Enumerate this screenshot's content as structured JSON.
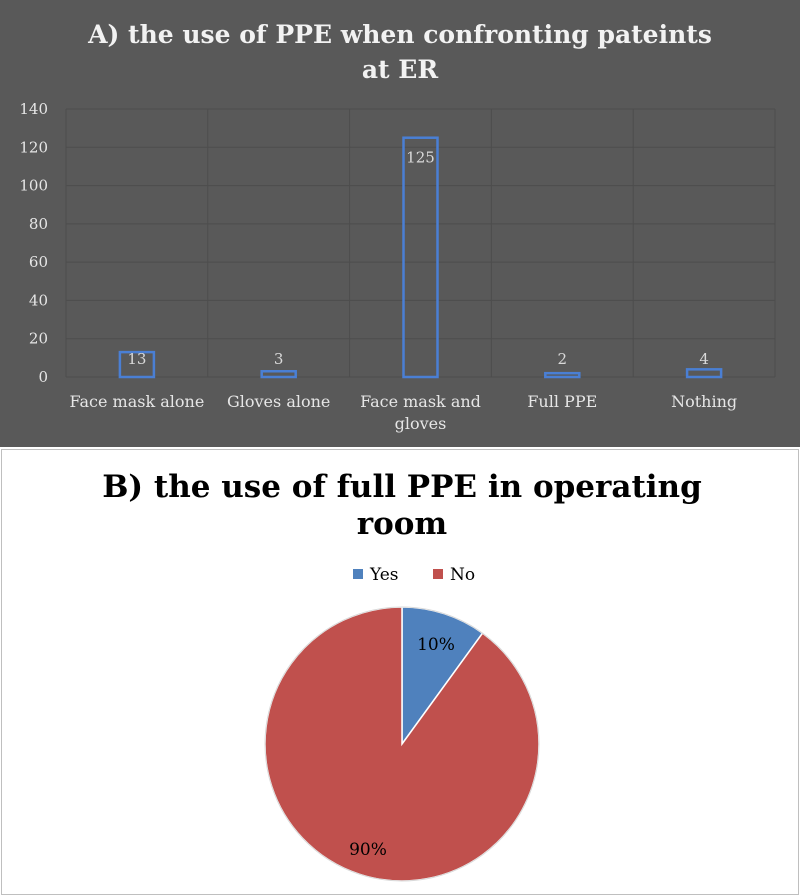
{
  "chart_data": [
    {
      "type": "bar",
      "title_lines": [
        "A) the use of PPE when confronting pateints",
        "at ER"
      ],
      "categories": [
        [
          "Face mask alone"
        ],
        [
          "Gloves alone"
        ],
        [
          "Face mask and",
          "gloves"
        ],
        [
          "Full PPE"
        ],
        [
          "Nothing"
        ]
      ],
      "values": [
        13,
        3,
        125,
        2,
        4
      ],
      "data_labels": [
        "13",
        "3",
        "125",
        "2",
        "4"
      ],
      "yticks": [
        "140",
        "120",
        "100",
        "80",
        "60",
        "40",
        "20",
        "0"
      ],
      "ylim": [
        0,
        140
      ],
      "grid": true,
      "legend": false,
      "colors": {
        "background": "#595959",
        "bar_outline": "#4a7fd4",
        "grid": "#4d4d4d"
      }
    },
    {
      "type": "pie",
      "title_lines": [
        "B) the use of full PPE in operating",
        "room"
      ],
      "slices": [
        {
          "name": "Yes",
          "value": 10,
          "label": "10%",
          "color": "#4f81bd"
        },
        {
          "name": "No",
          "value": 90,
          "label": "90%",
          "color": "#c0504d"
        }
      ],
      "legend": {
        "position": "top",
        "items": [
          "Yes",
          "No"
        ]
      }
    }
  ]
}
